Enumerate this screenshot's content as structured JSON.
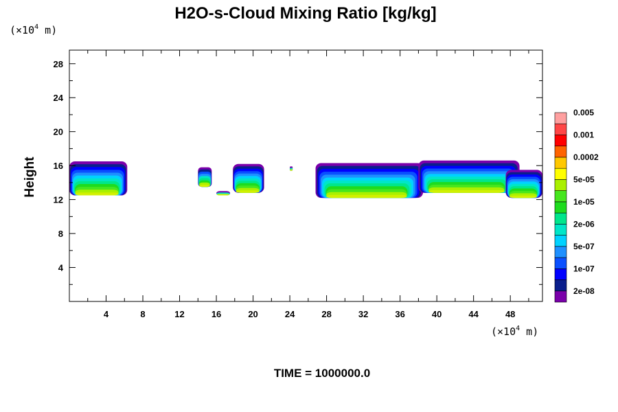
{
  "chart_data": {
    "type": "heatmap",
    "title": "H2O-s-Cloud Mixing Ratio [kg/kg]",
    "ylabel": "Height",
    "xlabel": "",
    "x_unit_prefix": "(×10",
    "x_unit_exp": "4",
    "x_unit_suffix": " m)",
    "y_unit_prefix": "(×10",
    "y_unit_exp": "4",
    "y_unit_suffix": " m)",
    "time_label": "TIME = 1000000.0",
    "xlim": [
      0,
      51.5
    ],
    "ylim": [
      0,
      29.6
    ],
    "x_ticks": [
      4,
      8,
      12,
      16,
      20,
      24,
      28,
      32,
      36,
      40,
      44,
      48
    ],
    "x_tick_labels": [
      "4",
      "8",
      "12",
      "16",
      "20",
      "24",
      "28",
      "32",
      "36",
      "40",
      "44",
      "48"
    ],
    "y_ticks": [
      4,
      8,
      12,
      16,
      20,
      24,
      28
    ],
    "y_tick_labels": [
      "4",
      "8",
      "12",
      "16",
      "20",
      "24",
      "28"
    ],
    "colorbar": {
      "colors": [
        "#7a00aa",
        "#0a1e8c",
        "#0000ff",
        "#0a50ff",
        "#1e90ff",
        "#00d2ff",
        "#00e6c8",
        "#00e68c",
        "#1edc1e",
        "#46e61e",
        "#aaf000",
        "#ffff00",
        "#ffc800",
        "#ff6400",
        "#ff0000",
        "#ff4646",
        "#ffa0a0"
      ],
      "labels": [
        "2e-08",
        "1e-07",
        "5e-07",
        "2e-06",
        "1e-05",
        "5e-05",
        "0.0002",
        "0.001",
        "0.005"
      ]
    },
    "cloud_regions": [
      {
        "x": [
          0,
          6.3
        ],
        "y": [
          12.5,
          16.5
        ]
      },
      {
        "x": [
          14.0,
          15.5
        ],
        "y": [
          13.5,
          15.8
        ]
      },
      {
        "x": [
          16.0,
          17.5
        ],
        "y": [
          12.5,
          13.0
        ]
      },
      {
        "x": [
          17.8,
          21.2
        ],
        "y": [
          12.8,
          16.2
        ]
      },
      {
        "x": [
          24.0,
          24.3
        ],
        "y": [
          15.4,
          15.9
        ]
      },
      {
        "x": [
          26.8,
          38.5
        ],
        "y": [
          12.2,
          16.3
        ]
      },
      {
        "x": [
          38.0,
          49.0
        ],
        "y": [
          12.8,
          16.6
        ]
      },
      {
        "x": [
          47.5,
          51.5
        ],
        "y": [
          12.2,
          15.5
        ]
      }
    ]
  }
}
